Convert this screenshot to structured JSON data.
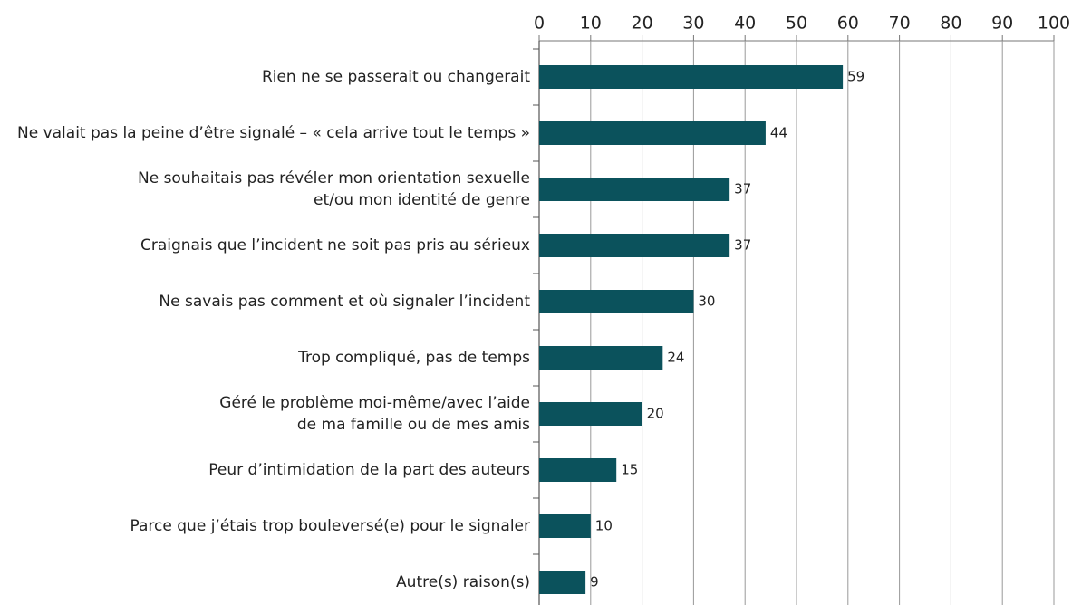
{
  "chart_data": {
    "type": "bar",
    "orientation": "horizontal",
    "categories": [
      "Rien ne se passerait ou changerait",
      "Ne valait pas la peine d’être signalé – « cela arrive tout le temps »",
      "Ne souhaitais pas révéler mon orientation sexuelle\net/ou mon identité de genre",
      "Craignais que l’incident ne soit pas pris au sérieux",
      "Ne savais pas comment et où signaler l’incident",
      "Trop compliqué, pas de temps",
      "Géré le problème moi-même/avec l’aide\nde ma famille ou de mes amis",
      "Peur d’intimidation de la part des auteurs",
      "Parce que j’étais trop bouleversé(e) pour le signaler",
      "Autre(s) raison(s)"
    ],
    "values": [
      59,
      44,
      37,
      37,
      30,
      24,
      20,
      15,
      10,
      9
    ],
    "color": "#0b525c",
    "xlim": [
      0,
      100
    ],
    "xticks": [
      0,
      10,
      20,
      30,
      40,
      50,
      60,
      70,
      80,
      90,
      100
    ],
    "grid": true
  }
}
